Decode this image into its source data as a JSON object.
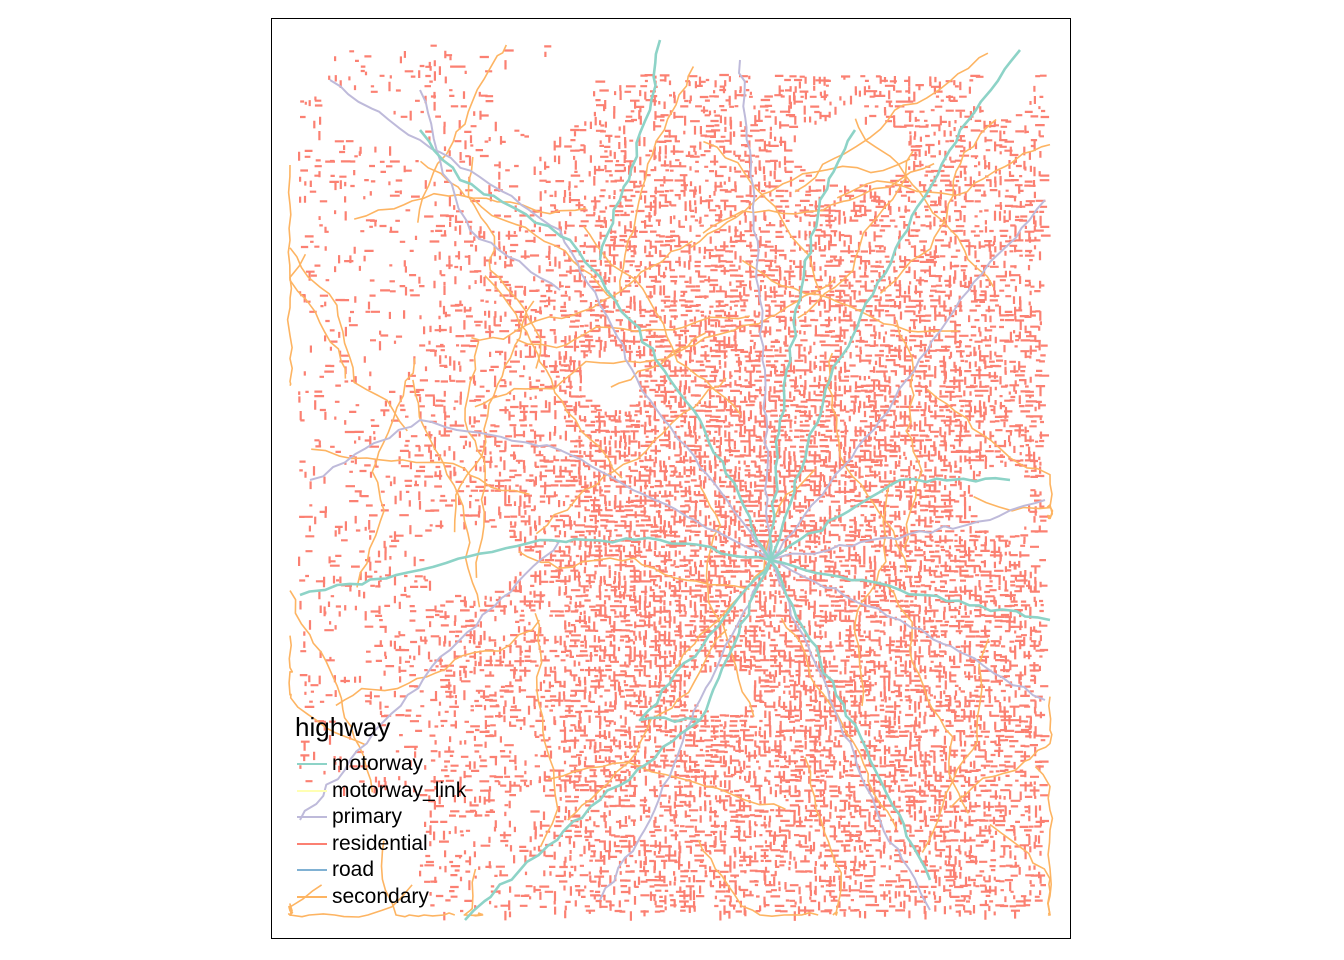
{
  "legend": {
    "title": "highway",
    "items": [
      {
        "label": "motorway",
        "color": "#8dd3c7"
      },
      {
        "label": "motorway_link",
        "color": "#ffffb3"
      },
      {
        "label": "primary",
        "color": "#bebada"
      },
      {
        "label": "residential",
        "color": "#fb8072"
      },
      {
        "label": "road",
        "color": "#80b1d3"
      },
      {
        "label": "secondary",
        "color": "#fdb462"
      }
    ]
  }
}
